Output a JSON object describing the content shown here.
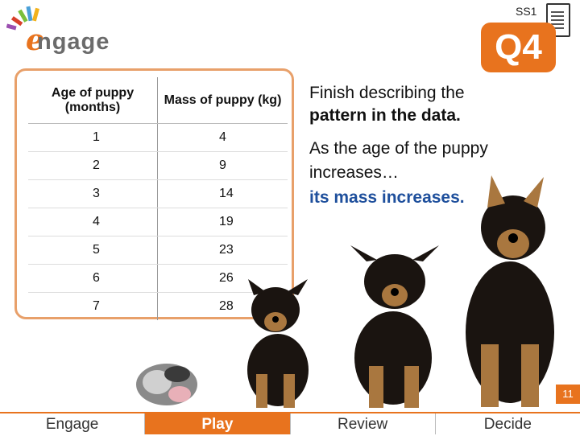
{
  "header": {
    "brand": "ngage",
    "brand_initial": "e",
    "slide_code": "SS1",
    "question_label": "Q4"
  },
  "table": {
    "headers": [
      "Age of puppy (months)",
      "Mass of puppy (kg)"
    ],
    "rows": [
      [
        "1",
        "4"
      ],
      [
        "2",
        "9"
      ],
      [
        "3",
        "14"
      ],
      [
        "4",
        "19"
      ],
      [
        "5",
        "23"
      ],
      [
        "6",
        "26"
      ],
      [
        "7",
        "28"
      ]
    ]
  },
  "prompt": {
    "line1": "Finish describing the",
    "line2": "pattern in the data.",
    "stem": "As the age of the puppy increases…",
    "answer": "its mass increases."
  },
  "page_number": "11",
  "nav": {
    "items": [
      "Engage",
      "Play",
      "Review",
      "Decide"
    ],
    "active": "Play"
  },
  "colors": {
    "accent": "#e8731e",
    "answer": "#1e4f9c"
  }
}
